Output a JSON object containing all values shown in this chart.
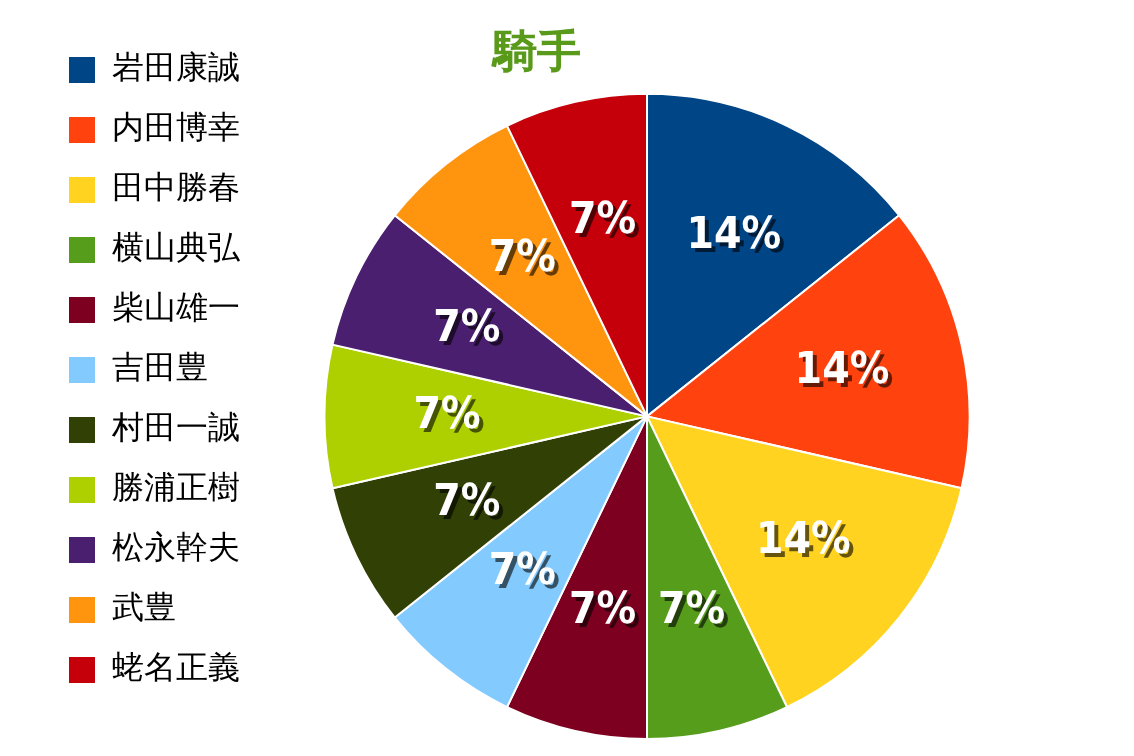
{
  "chart_data": {
    "type": "pie",
    "title": "騎手",
    "categories": [
      "岩田康誠",
      "内田博幸",
      "田中勝春",
      "横山典弘",
      "柴山雄一",
      "吉田豊",
      "村田一誠",
      "勝浦正樹",
      "松永幹夫",
      "武豊",
      "蛯名正義"
    ],
    "values": [
      14,
      14,
      14,
      7,
      7,
      7,
      7,
      7,
      7,
      7,
      7
    ],
    "colors": [
      "#004586",
      "#ff420e",
      "#ffd320",
      "#579d1c",
      "#7e0021",
      "#83caff",
      "#314004",
      "#aecf00",
      "#4b1f6f",
      "#ff950e",
      "#c5000b"
    ],
    "value_labels": [
      "14%",
      "14%",
      "14%",
      "7%",
      "7%",
      "7%",
      "7%",
      "7%",
      "7%",
      "7%",
      "7%"
    ],
    "legend": "left"
  }
}
